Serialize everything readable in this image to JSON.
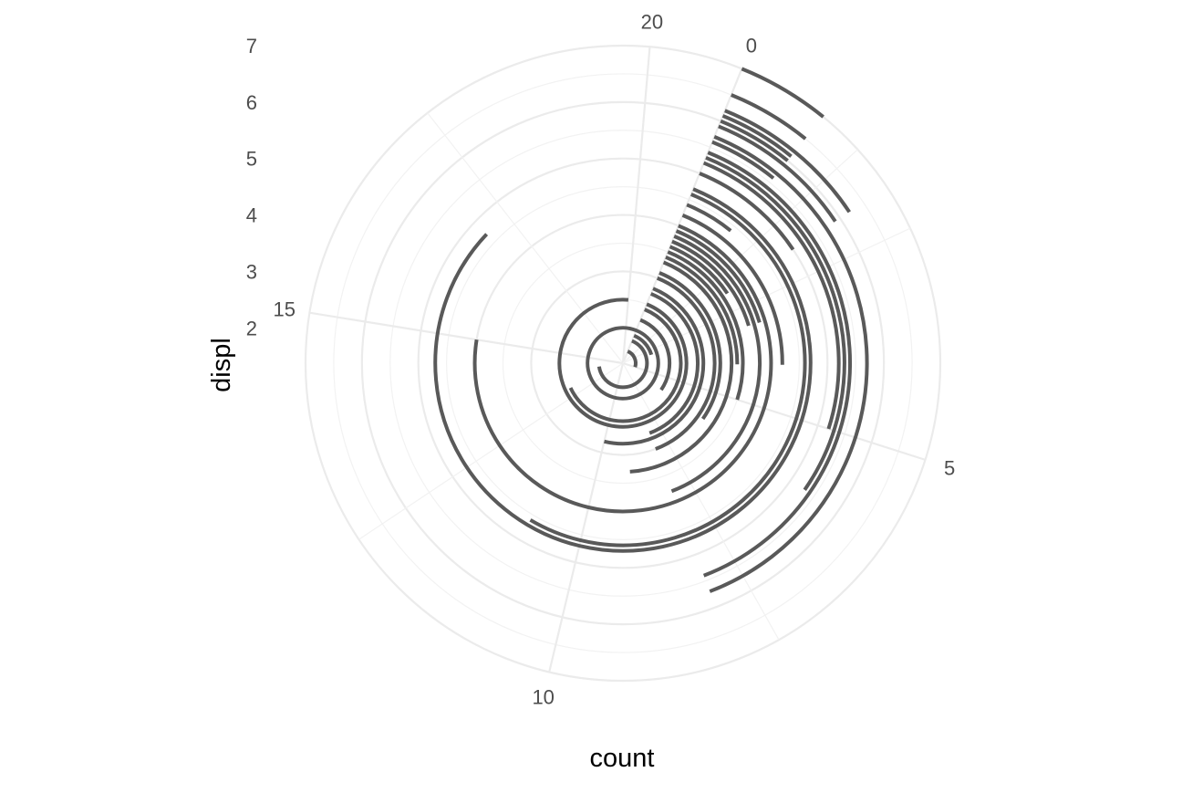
{
  "chart_data": {
    "type": "bar",
    "coord": "polar",
    "orientation": "horizontal",
    "xlabel": "count",
    "ylabel": "displ",
    "count_ticks": [
      0,
      5,
      10,
      15,
      20
    ],
    "count_range": [
      0,
      21
    ],
    "displ_ticks": [
      2,
      3,
      4,
      5,
      6,
      7
    ],
    "displ_range": [
      1.6,
      7.0
    ],
    "grid": true,
    "bars": [
      {
        "displ": 1.6,
        "count": 5
      },
      {
        "displ": 1.8,
        "count": 14
      },
      {
        "displ": 1.9,
        "count": 3
      },
      {
        "displ": 2.0,
        "count": 21
      },
      {
        "displ": 2.2,
        "count": 6
      },
      {
        "displ": 2.4,
        "count": 13
      },
      {
        "displ": 2.5,
        "count": 20
      },
      {
        "displ": 2.7,
        "count": 8
      },
      {
        "displ": 2.8,
        "count": 10
      },
      {
        "displ": 3.0,
        "count": 8
      },
      {
        "displ": 3.1,
        "count": 6
      },
      {
        "displ": 3.3,
        "count": 9
      },
      {
        "displ": 3.4,
        "count": 4
      },
      {
        "displ": 3.5,
        "count": 5
      },
      {
        "displ": 3.6,
        "count": 2
      },
      {
        "displ": 3.7,
        "count": 3
      },
      {
        "displ": 3.8,
        "count": 8
      },
      {
        "displ": 3.9,
        "count": 3
      },
      {
        "displ": 4.0,
        "count": 15
      },
      {
        "displ": 4.2,
        "count": 4
      },
      {
        "displ": 4.4,
        "count": 1
      },
      {
        "displ": 4.6,
        "count": 11
      },
      {
        "displ": 4.7,
        "count": 17
      },
      {
        "displ": 5.0,
        "count": 2
      },
      {
        "displ": 5.2,
        "count": 5
      },
      {
        "displ": 5.3,
        "count": 6
      },
      {
        "displ": 5.4,
        "count": 8
      },
      {
        "displ": 5.6,
        "count": 1
      },
      {
        "displ": 5.7,
        "count": 8
      },
      {
        "displ": 5.9,
        "count": 2
      },
      {
        "displ": 6.0,
        "count": 1
      },
      {
        "displ": 6.1,
        "count": 1
      },
      {
        "displ": 6.2,
        "count": 2
      },
      {
        "displ": 6.5,
        "count": 1
      },
      {
        "displ": 7.0,
        "count": 1
      }
    ]
  }
}
